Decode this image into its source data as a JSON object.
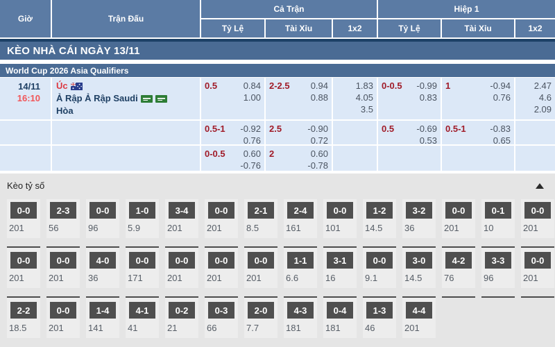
{
  "colors": {
    "header_blue": "#5b7ba4",
    "banner_blue": "#4a6b94",
    "banner_border": "#1c4066",
    "row_blue": "#dce8f7",
    "line_maroon": "#a01b28",
    "score_box_gray": "#4f4f4f"
  },
  "header": {
    "col_gio": "Giờ",
    "col_tran_dau": "Trận Đấu",
    "col_ca_tran": "Cả Trận",
    "col_hiep1": "Hiệp 1",
    "sub_ty_le": "Tỷ Lệ",
    "sub_tai_xiu": "Tài Xỉu",
    "sub_1x2": "1x2"
  },
  "banner_title": "KÈO NHÀ CÁI NGÀY 13/11",
  "league_title": "World Cup 2026 Asia Qualifiers",
  "match": {
    "date": "14/11",
    "time": "16:10",
    "home_team": "Úc",
    "home_flag": "australia-flag",
    "away_team": "Ả Rập Ả Rập Saudi",
    "away_flags": [
      "saudi-arabia-flag",
      "saudi-arabia-flag"
    ],
    "draw_label": "Hòa"
  },
  "odds_rows": [
    {
      "ft": {
        "handicap": {
          "line": "0.5",
          "v1": "0.84",
          "v2": "1.00"
        },
        "total": {
          "line": "2-2.5",
          "v1": "0.94",
          "v2": "0.88"
        },
        "x12": [
          "1.83",
          "4.05",
          "3.5"
        ]
      },
      "h1": {
        "handicap": {
          "line": "0-0.5",
          "v1": "-0.99",
          "v2": "0.83"
        },
        "total": {
          "line": "1",
          "v1": "-0.94",
          "v2": "0.76"
        },
        "x12": [
          "2.47",
          "4.6",
          "2.09"
        ]
      }
    },
    {
      "ft": {
        "handicap": {
          "line": "0.5-1",
          "v1": "-0.92",
          "v2": "0.76"
        },
        "total": {
          "line": "2.5",
          "v1": "-0.90",
          "v2": "0.72"
        },
        "x12": []
      },
      "h1": {
        "handicap": {
          "line": "0.5",
          "v1": "-0.69",
          "v2": "0.53"
        },
        "total": {
          "line": "0.5-1",
          "v1": "-0.83",
          "v2": "0.65"
        },
        "x12": []
      }
    },
    {
      "ft": {
        "handicap": {
          "line": "0-0.5",
          "v1": "0.60",
          "v2": "-0.76"
        },
        "total": {
          "line": "2",
          "v1": "0.60",
          "v2": "-0.78"
        },
        "x12": []
      },
      "h1": {
        "handicap": null,
        "total": null,
        "x12": []
      }
    }
  ],
  "score_section": {
    "title": "Kèo tỷ số",
    "collapse_icon": "triangle-up-icon",
    "rows": [
      [
        {
          "score": "0-0",
          "odds": "201"
        },
        {
          "score": "2-3",
          "odds": "56"
        },
        {
          "score": "0-0",
          "odds": "96"
        },
        {
          "score": "1-0",
          "odds": "5.9"
        },
        {
          "score": "3-4",
          "odds": "201"
        },
        {
          "score": "0-0",
          "odds": "201"
        },
        {
          "score": "2-1",
          "odds": "8.5"
        },
        {
          "score": "2-4",
          "odds": "161"
        },
        {
          "score": "0-0",
          "odds": "101"
        },
        {
          "score": "1-2",
          "odds": "14.5"
        },
        {
          "score": "3-2",
          "odds": "36"
        },
        {
          "score": "0-0",
          "odds": "201"
        },
        {
          "score": "0-1",
          "odds": "10"
        },
        {
          "score": "0-0",
          "odds": "201"
        }
      ],
      [
        {
          "score": "0-0",
          "odds": "201"
        },
        {
          "score": "0-0",
          "odds": "201"
        },
        {
          "score": "4-0",
          "odds": "36"
        },
        {
          "score": "0-0",
          "odds": "171"
        },
        {
          "score": "0-0",
          "odds": "201"
        },
        {
          "score": "0-0",
          "odds": "201"
        },
        {
          "score": "0-0",
          "odds": "201"
        },
        {
          "score": "1-1",
          "odds": "6.6"
        },
        {
          "score": "3-1",
          "odds": "16"
        },
        {
          "score": "0-0",
          "odds": "9.1"
        },
        {
          "score": "3-0",
          "odds": "14.5"
        },
        {
          "score": "4-2",
          "odds": "76"
        },
        {
          "score": "3-3",
          "odds": "96"
        },
        {
          "score": "0-0",
          "odds": "201"
        }
      ],
      [
        {
          "score": "2-2",
          "odds": "18.5"
        },
        {
          "score": "0-0",
          "odds": "201"
        },
        {
          "score": "1-4",
          "odds": "141"
        },
        {
          "score": "4-1",
          "odds": "41"
        },
        {
          "score": "0-2",
          "odds": "21"
        },
        {
          "score": "0-3",
          "odds": "66"
        },
        {
          "score": "2-0",
          "odds": "7.7"
        },
        {
          "score": "4-3",
          "odds": "181"
        },
        {
          "score": "0-4",
          "odds": "181"
        },
        {
          "score": "1-3",
          "odds": "46"
        },
        {
          "score": "4-4",
          "odds": "201"
        },
        null,
        null,
        null
      ]
    ]
  }
}
